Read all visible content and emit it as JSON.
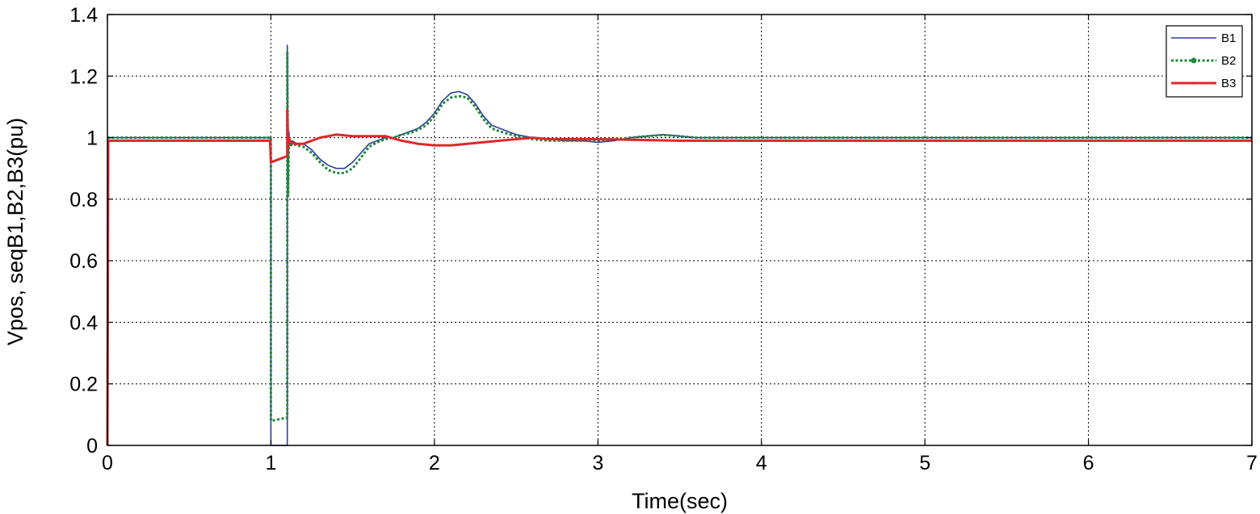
{
  "chart_data": {
    "type": "line",
    "title": "",
    "xlabel": "Time(sec)",
    "ylabel": "Vpos, seqB1,B2,B3(pu)",
    "xlim": [
      0,
      7
    ],
    "ylim": [
      0,
      1.4
    ],
    "xticks": [
      "0",
      "1",
      "2",
      "3",
      "4",
      "5",
      "6",
      "7"
    ],
    "yticks": [
      "0",
      "0.2",
      "0.4",
      "0.6",
      "0.8",
      "1",
      "1.2",
      "1.4"
    ],
    "grid": true,
    "legend_position": "top-right",
    "series": [
      {
        "name": "B1",
        "color": "#2b3f9a",
        "style": "solid",
        "x": [
          0,
          0.995,
          1.0,
          1.0,
          1.1,
          1.1,
          1.105,
          1.11,
          1.115,
          1.13,
          1.16,
          1.2,
          1.25,
          1.3,
          1.35,
          1.4,
          1.45,
          1.5,
          1.55,
          1.6,
          1.65,
          1.7,
          1.75,
          1.8,
          1.85,
          1.9,
          1.95,
          2.0,
          2.05,
          2.1,
          2.15,
          2.2,
          2.25,
          2.3,
          2.35,
          2.4,
          2.5,
          2.6,
          2.7,
          2.8,
          2.9,
          3.0,
          3.1,
          3.2,
          3.3,
          3.4,
          3.5,
          3.6,
          3.8,
          4.0,
          5.0,
          7.0
        ],
        "y": [
          1.0,
          1.0,
          1.0,
          0.0,
          0.0,
          1.3,
          0.85,
          1.02,
          0.98,
          0.99,
          0.98,
          0.98,
          0.96,
          0.93,
          0.91,
          0.9,
          0.9,
          0.92,
          0.95,
          0.98,
          0.99,
          1.0,
          1.0,
          1.01,
          1.02,
          1.03,
          1.05,
          1.08,
          1.12,
          1.145,
          1.15,
          1.14,
          1.11,
          1.07,
          1.04,
          1.03,
          1.01,
          1.0,
          0.995,
          0.99,
          0.99,
          0.985,
          0.99,
          1.0,
          1.005,
          1.01,
          1.005,
          1.0,
          1.0,
          1.0,
          1.0,
          1.0
        ]
      },
      {
        "name": "B2",
        "color": "#1f8a3a",
        "style": "dotted",
        "x": [
          0,
          0.995,
          1.0,
          1.0,
          1.1,
          1.1,
          1.105,
          1.11,
          1.115,
          1.13,
          1.16,
          1.2,
          1.25,
          1.3,
          1.35,
          1.4,
          1.45,
          1.5,
          1.55,
          1.6,
          1.65,
          1.7,
          1.75,
          1.8,
          1.85,
          1.9,
          1.95,
          2.0,
          2.05,
          2.1,
          2.15,
          2.2,
          2.25,
          2.3,
          2.35,
          2.4,
          2.5,
          2.6,
          2.7,
          2.8,
          2.9,
          3.0,
          3.1,
          3.2,
          3.3,
          3.4,
          3.5,
          3.6,
          3.8,
          4.0,
          5.0,
          7.0
        ],
        "y": [
          1.0,
          1.0,
          1.0,
          0.08,
          0.09,
          1.28,
          0.81,
          1.0,
          0.97,
          0.98,
          0.975,
          0.97,
          0.95,
          0.92,
          0.895,
          0.885,
          0.885,
          0.9,
          0.935,
          0.97,
          0.985,
          0.995,
          1.0,
          1.01,
          1.015,
          1.025,
          1.04,
          1.07,
          1.11,
          1.13,
          1.135,
          1.13,
          1.1,
          1.06,
          1.03,
          1.02,
          1.005,
          0.995,
          0.99,
          0.99,
          0.99,
          0.99,
          0.995,
          1.0,
          1.005,
          1.008,
          1.005,
          1.0,
          1.0,
          1.0,
          1.0,
          1.0
        ]
      },
      {
        "name": "B3",
        "color": "#e0262a",
        "style": "solid",
        "x": [
          0,
          0.005,
          0.995,
          1.0,
          1.05,
          1.1,
          1.1,
          1.105,
          1.11,
          1.12,
          1.15,
          1.2,
          1.25,
          1.3,
          1.35,
          1.4,
          1.5,
          1.6,
          1.7,
          1.8,
          1.9,
          2.0,
          2.1,
          2.2,
          2.3,
          2.4,
          2.5,
          2.6,
          2.7,
          2.8,
          3.0,
          3.5,
          4.0,
          5.0,
          7.0
        ],
        "y": [
          0.0,
          0.99,
          0.99,
          0.92,
          0.93,
          0.94,
          1.09,
          0.97,
          1.0,
          0.985,
          0.98,
          0.98,
          0.99,
          1.0,
          1.005,
          1.01,
          1.005,
          1.005,
          1.005,
          0.99,
          0.98,
          0.975,
          0.975,
          0.98,
          0.985,
          0.99,
          0.995,
          1.0,
          0.995,
          0.995,
          0.995,
          0.99,
          0.99,
          0.99,
          0.99
        ]
      }
    ]
  }
}
